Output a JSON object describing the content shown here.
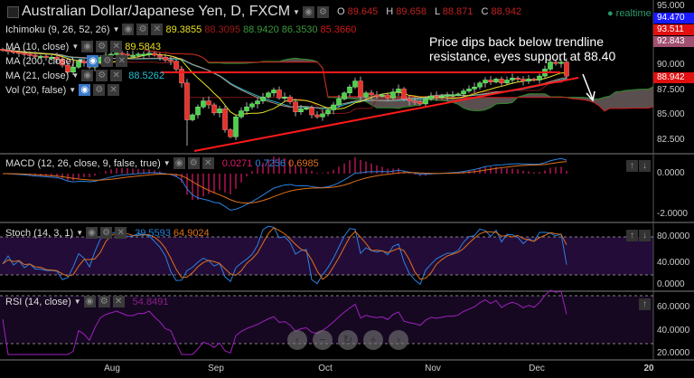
{
  "header": {
    "title": "Australian Dollar/Japanese Yen, D, FXCM",
    "ohlc": [
      {
        "k": "O",
        "v": "89.645"
      },
      {
        "k": "H",
        "v": "89.658"
      },
      {
        "k": "L",
        "v": "88.871"
      },
      {
        "k": "C",
        "v": "88.942"
      }
    ],
    "status": "realtime"
  },
  "indicators": {
    "ichimoku": {
      "label": "Ichimoku (9, 26, 52, 26)",
      "values": [
        "89.3855",
        "88.3095",
        "88.9420",
        "86.3530",
        "85.3660"
      ]
    },
    "ma10": {
      "label": "MA (10, close)",
      "value": "89.5843"
    },
    "ma200": {
      "label": "MA (200, close)"
    },
    "ma21": {
      "label": "MA (21, close)",
      "value": "88.5262"
    },
    "vol": {
      "label": "Vol (20, false)"
    },
    "macd": {
      "label": "MACD (12, 26, close, 9, false, true)",
      "values": [
        "0.0271",
        "0.7256",
        "0.6985"
      ]
    },
    "stoch": {
      "label": "Stoch (14, 3, 1)",
      "values": [
        "39.5593",
        "64.9024"
      ]
    },
    "rsi": {
      "label": "RSI (14, close)",
      "value": "54.8491"
    }
  },
  "annotation": "Price dips back below trendline resistance, eyes support at 88.40",
  "price_axis": {
    "ticks": [
      "95.000",
      "90.000",
      "87.500",
      "85.000",
      "82.500"
    ],
    "tags": [
      {
        "v": "94.470",
        "color": "#1a1aff"
      },
      {
        "v": "93.511",
        "color": "#e01010"
      },
      {
        "v": "92.843",
        "color": "#a05070"
      },
      {
        "v": "88.942",
        "color": "#e01010"
      }
    ]
  },
  "macd_axis": [
    "0.0000",
    "-2.0000"
  ],
  "stoch_axis": [
    "80.0000",
    "40.0000",
    "0.0000"
  ],
  "rsi_axis": [
    "60.0000",
    "40.0000",
    "20.0000"
  ],
  "x_axis": [
    "Aug",
    "Sep",
    "Oct",
    "Nov",
    "Dec",
    "20"
  ],
  "nav_buttons": [
    "‹",
    "−",
    "↻",
    "+",
    "›"
  ],
  "colors": {
    "up": "#4cd04c",
    "down": "#e8322a",
    "ma10": "#e8e020",
    "ma21": "#20c0d0",
    "ma200": "#b09080",
    "cloud": "#5a4f4f",
    "spanA": "#2a8a2a",
    "spanB": "#d01818",
    "macd": "#2a82e0",
    "signal": "#e0701a",
    "hist": "#e0186a",
    "rsi": "#a020c0"
  },
  "chart_data": {
    "type": "candlestick",
    "closes": [
      91.5,
      91.4,
      91.3,
      91.2,
      91.1,
      91.0,
      90.9,
      90.9,
      90.8,
      90.8,
      90.6,
      90.0,
      89.3,
      89.8,
      90.4,
      90.2,
      89.8,
      90.3,
      90.8,
      91.0,
      91.1,
      91.2,
      91.1,
      91.0,
      91.0,
      91.1,
      91.1,
      91.2,
      91.0,
      90.8,
      90.5,
      90.4,
      89.6,
      88.2,
      84.5,
      85.0,
      85.8,
      86.4,
      86.0,
      85.2,
      85.6,
      83.5,
      82.8,
      84.8,
      85.4,
      85.8,
      86.1,
      86.4,
      86.8,
      87.2,
      87.5,
      86.7,
      86.8,
      86.3,
      85.3,
      85.6,
      85.7,
      85.0,
      84.8,
      85.1,
      85.5,
      86.0,
      86.6,
      87.2,
      87.8,
      88.4,
      86.8,
      87.2,
      87.0,
      86.9,
      87.0,
      86.7,
      87.3,
      87.6,
      86.6,
      86.4,
      86.3,
      86.1,
      86.6,
      86.9,
      86.8,
      86.9,
      87.0,
      87.0,
      87.1,
      87.4,
      87.6,
      87.8,
      88.2,
      88.5,
      88.3,
      88.6,
      88.2,
      88.5,
      88.7,
      88.6,
      88.4,
      88.6,
      88.5,
      88.9,
      89.6,
      90.3,
      90.2,
      90.3,
      88.9
    ],
    "resistance_level": 89.27,
    "trendline": [
      81.36,
      88.73
    ]
  }
}
